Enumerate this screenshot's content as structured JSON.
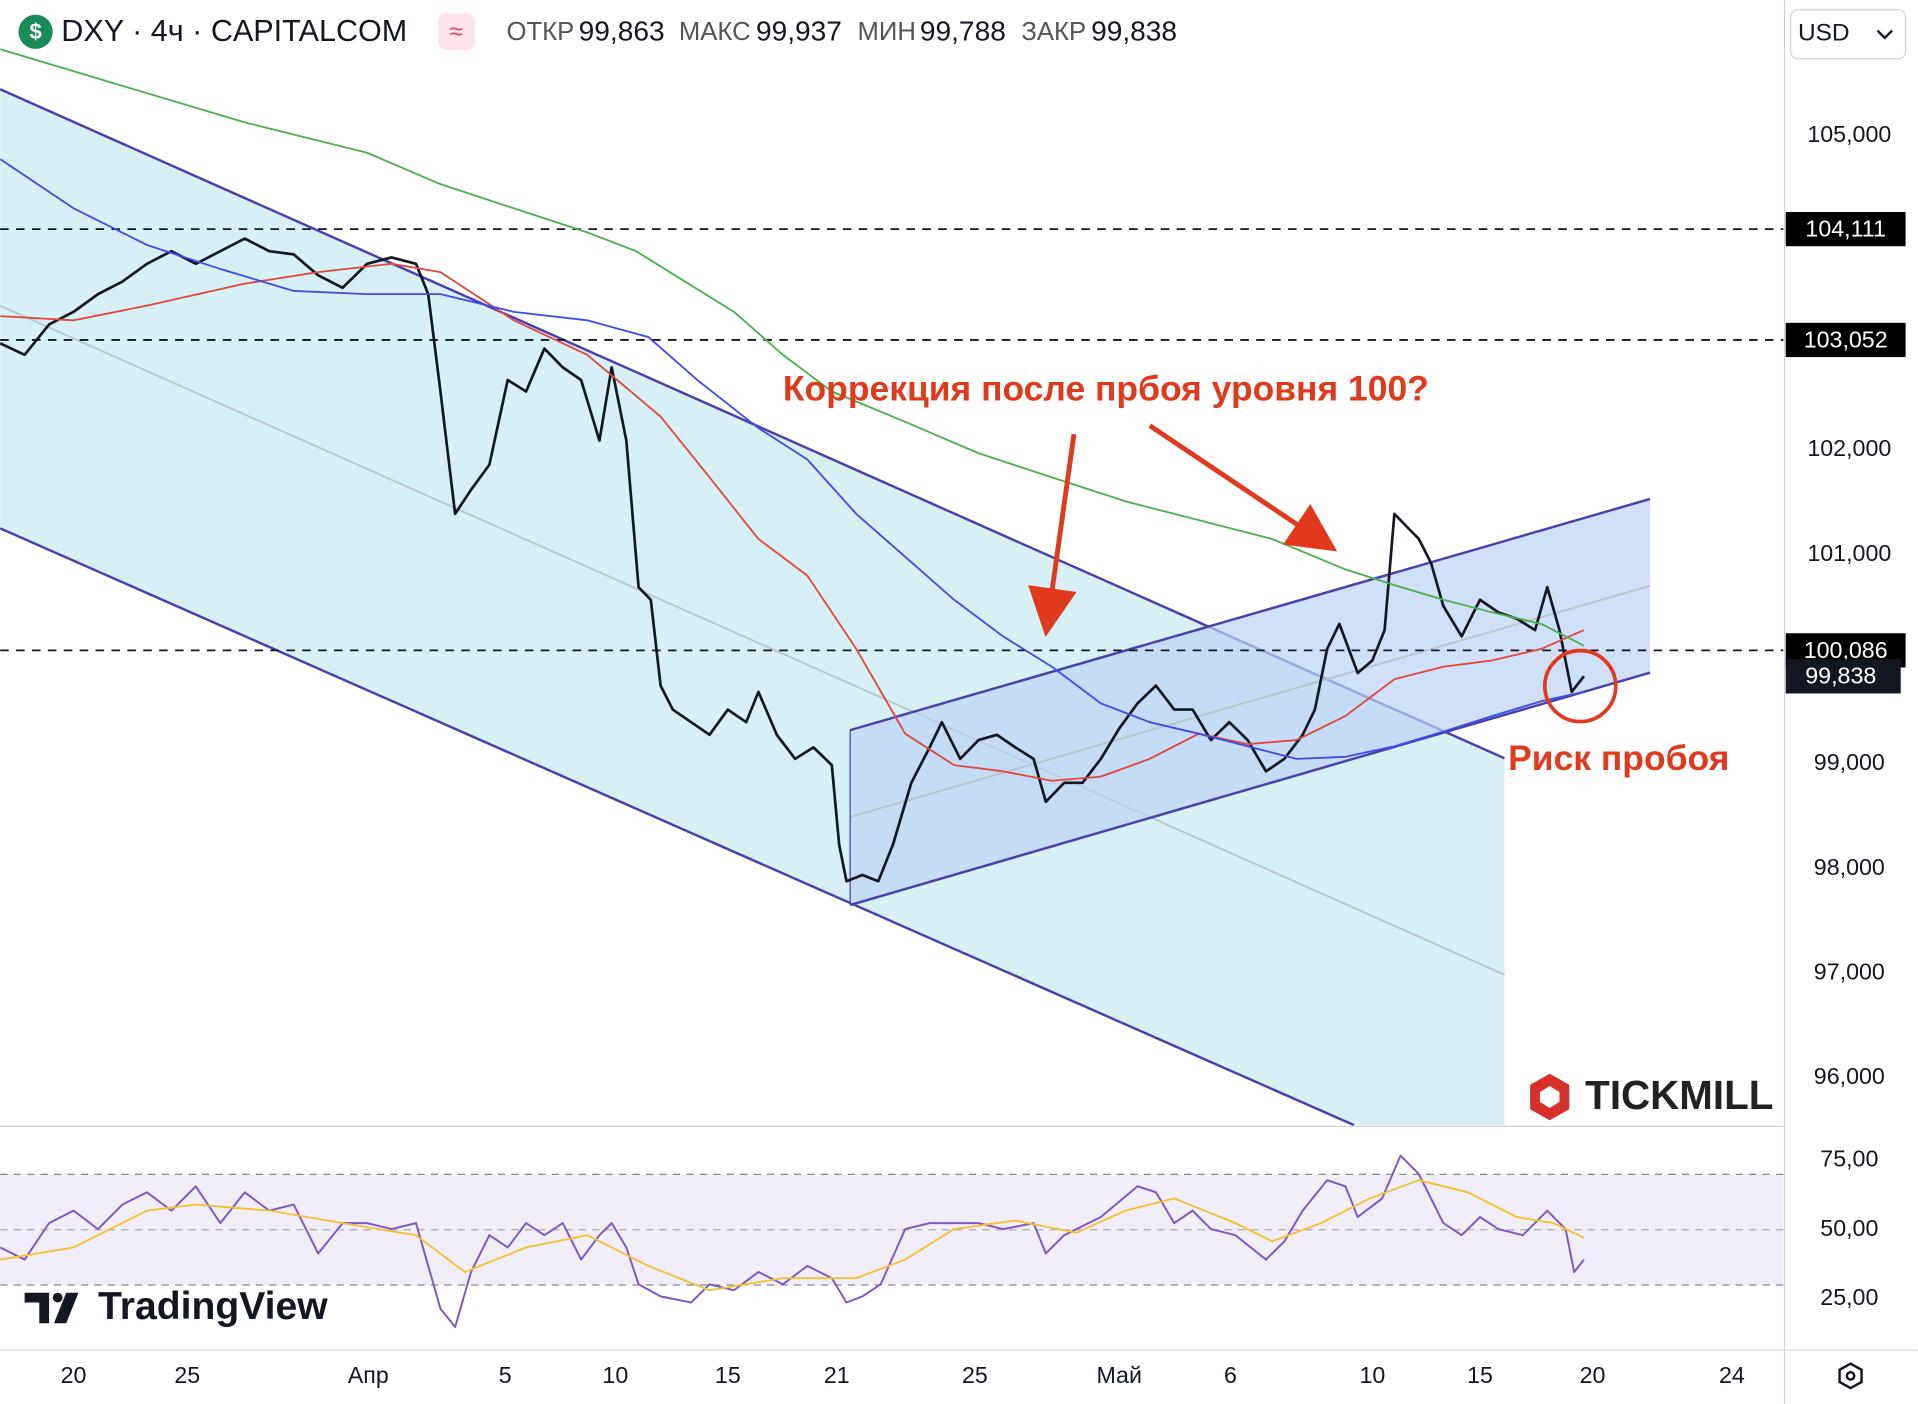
{
  "header": {
    "symbol": "DXY · 4ч · CAPITALCOM",
    "currency": "USD",
    "ohlc": [
      {
        "label": "ОТКР",
        "value": "99,863"
      },
      {
        "label": "МАКС",
        "value": "99,937"
      },
      {
        "label": "МИН",
        "value": "99,788"
      },
      {
        "label": "ЗАКР",
        "value": "99,838"
      }
    ]
  },
  "logos": [
    "TICKMILL",
    "TradingView"
  ],
  "chart_data": [
    {
      "type": "line",
      "annotations": [
        "Коррекция после прбоя уровня 100?",
        "Риск пробоя"
      ],
      "xlim": [
        0,
        291.6
      ],
      "xticks": [
        {
          "value": 12,
          "label": "20"
        },
        {
          "value": 30.6,
          "label": "25"
        },
        {
          "value": 60.2,
          "label": "Апр"
        },
        {
          "value": 82.6,
          "label": "5"
        },
        {
          "value": 100.6,
          "label": "10"
        },
        {
          "value": 119,
          "label": "15"
        },
        {
          "value": 136.8,
          "label": "21"
        },
        {
          "value": 159.4,
          "label": "25"
        },
        {
          "value": 183,
          "label": "Май"
        },
        {
          "value": 201.2,
          "label": "6"
        },
        {
          "value": 224.4,
          "label": "10"
        },
        {
          "value": 242,
          "label": "15"
        },
        {
          "value": 260.4,
          "label": "20"
        },
        {
          "value": 283.2,
          "label": "24"
        }
      ],
      "ylim": [
        95.55,
        106.3
      ],
      "yticks": [
        {
          "value": 105,
          "label": "105,000"
        },
        {
          "value": 102,
          "label": "102,000"
        },
        {
          "value": 101,
          "label": "101,000"
        },
        {
          "value": 99,
          "label": "99,000"
        },
        {
          "value": 98,
          "label": "98,000"
        },
        {
          "value": 97,
          "label": "97,000"
        },
        {
          "value": 96,
          "label": "96,000"
        }
      ],
      "levels": [
        {
          "value": 104.111,
          "label": "104,111"
        },
        {
          "value": 103.052,
          "label": "103,052"
        },
        {
          "value": 100.086,
          "label": "100,086"
        }
      ],
      "last_price": {
        "value": 99.838,
        "label": "99,838"
      },
      "series": [
        {
          "color": "#131722",
          "width": 2.2,
          "x": [
            0,
            4,
            8,
            12,
            16,
            20,
            24,
            28,
            32,
            36,
            40,
            44,
            48,
            52,
            56,
            60,
            64,
            68,
            70,
            72,
            74.4,
            77,
            80,
            83,
            86,
            89,
            92,
            95,
            98,
            100,
            102.4,
            104.4,
            106.4,
            108,
            110,
            113,
            116,
            119,
            122,
            124,
            127,
            130,
            133,
            136,
            137.2,
            138.4,
            141,
            143.6,
            146,
            149,
            152,
            154,
            157,
            160,
            163,
            166,
            169,
            171,
            174,
            177,
            180,
            183,
            186,
            189,
            192,
            195,
            198,
            201,
            204,
            207,
            210,
            213,
            215,
            217,
            219,
            222,
            224.4,
            226.4,
            228,
            230,
            232,
            234,
            236,
            239,
            242,
            245,
            248,
            251,
            253,
            255,
            257,
            259
          ],
          "values": [
            103.02,
            102.91,
            103.2,
            103.32,
            103.49,
            103.61,
            103.78,
            103.9,
            103.78,
            103.9,
            104.02,
            103.9,
            103.87,
            103.67,
            103.55,
            103.78,
            103.84,
            103.78,
            103.49,
            102.56,
            101.39,
            101.62,
            101.86,
            102.67,
            102.56,
            102.97,
            102.79,
            102.67,
            102.09,
            102.79,
            102.09,
            100.69,
            100.57,
            99.75,
            99.52,
            99.4,
            99.28,
            99.52,
            99.4,
            99.69,
            99.28,
            99.05,
            99.16,
            98.99,
            98.23,
            97.88,
            97.94,
            97.88,
            98.23,
            98.82,
            99.16,
            99.4,
            99.05,
            99.23,
            99.28,
            99.16,
            99.05,
            98.64,
            98.82,
            98.82,
            99.05,
            99.34,
            99.58,
            99.75,
            99.52,
            99.52,
            99.23,
            99.4,
            99.23,
            98.93,
            99.05,
            99.28,
            99.52,
            100.1,
            100.34,
            99.87,
            99.99,
            100.28,
            101.39,
            101.27,
            101.15,
            100.92,
            100.51,
            100.22,
            100.57,
            100.45,
            100.39,
            100.28,
            100.69,
            100.28,
            99.69,
            99.84
          ]
        },
        {
          "color": "#e0483e",
          "width": 1.5,
          "x": [
            0,
            12,
            24,
            40,
            52,
            64,
            72,
            84,
            96,
            108,
            116,
            124,
            132,
            140,
            148,
            156,
            164,
            172,
            180,
            188,
            196,
            204,
            212,
            220,
            228,
            236,
            244,
            252,
            259
          ],
          "values": [
            103.28,
            103.24,
            103.38,
            103.59,
            103.7,
            103.78,
            103.7,
            103.24,
            102.91,
            102.32,
            101.74,
            101.15,
            100.8,
            100.1,
            99.29,
            98.99,
            98.93,
            98.84,
            98.88,
            99.05,
            99.29,
            99.19,
            99.23,
            99.46,
            99.81,
            99.93,
            99.99,
            100.1,
            100.28
          ]
        },
        {
          "color": "#3f4de8",
          "width": 1.5,
          "x": [
            0,
            12,
            24,
            36,
            48,
            60,
            72,
            84,
            96,
            106,
            114,
            124,
            132,
            140,
            148,
            156,
            164,
            172,
            180,
            188,
            196,
            204,
            212,
            220,
            228,
            236,
            244,
            252,
            259
          ],
          "values": [
            104.78,
            104.31,
            103.96,
            103.73,
            103.52,
            103.49,
            103.49,
            103.32,
            103.24,
            103.08,
            102.67,
            102.21,
            101.91,
            101.39,
            100.98,
            100.57,
            100.22,
            99.93,
            99.58,
            99.4,
            99.29,
            99.17,
            99.05,
            99.07,
            99.17,
            99.31,
            99.46,
            99.6,
            99.69
          ]
        },
        {
          "color": "#4caf50",
          "width": 1.5,
          "x": [
            0,
            20,
            40,
            60,
            72,
            84,
            96,
            104,
            112,
            120,
            128,
            136,
            148,
            160,
            172,
            184,
            196,
            208,
            220,
            228,
            236,
            244,
            252,
            259
          ],
          "values": [
            105.83,
            105.48,
            105.13,
            104.84,
            104.54,
            104.31,
            104.08,
            103.9,
            103.61,
            103.32,
            102.91,
            102.56,
            102.27,
            101.97,
            101.74,
            101.51,
            101.33,
            101.15,
            100.86,
            100.71,
            100.57,
            100.45,
            100.34,
            100.13
          ]
        }
      ]
    },
    {
      "type": "line",
      "ylim": [
        6.9,
        86.9
      ],
      "yticks": [
        {
          "value": 75,
          "label": "75,00"
        },
        {
          "value": 50,
          "label": "50,00"
        },
        {
          "value": 25,
          "label": "25,00"
        }
      ],
      "band": [
        30,
        70
      ],
      "midline": 50,
      "series": [
        {
          "color": "#7e57c2",
          "width": 1.6,
          "x": [
            0,
            4,
            8,
            12,
            16,
            20,
            24,
            28,
            32,
            36,
            40,
            44,
            48,
            52,
            56,
            60,
            64,
            68,
            72,
            74.4,
            77,
            80,
            83,
            86,
            89,
            92,
            95,
            98,
            100,
            102.4,
            104.4,
            108,
            113,
            116,
            120,
            124,
            128,
            132,
            136,
            138.4,
            141,
            144,
            148,
            152,
            156,
            160,
            164,
            169,
            171,
            174,
            180,
            186,
            189,
            192,
            195,
            198,
            202,
            207,
            210,
            213,
            217,
            220,
            222,
            226,
            229,
            232,
            236,
            239,
            242,
            245,
            249,
            253,
            256,
            257.4,
            259
          ],
          "values": [
            43.6,
            39.2,
            52.4,
            56.9,
            50.2,
            59.1,
            63.5,
            56.9,
            65.7,
            52.4,
            63.5,
            56.9,
            59.1,
            41.4,
            52.4,
            52.4,
            50.2,
            52.4,
            21.5,
            14.8,
            34.7,
            48.0,
            43.6,
            52.4,
            48.0,
            52.4,
            39.2,
            48.0,
            52.4,
            43.6,
            30.3,
            25.9,
            23.7,
            30.3,
            28.1,
            34.7,
            30.3,
            36.9,
            32.5,
            23.7,
            25.9,
            30.3,
            50.2,
            52.4,
            52.4,
            52.4,
            50.2,
            52.4,
            41.4,
            48.0,
            54.6,
            65.7,
            63.5,
            52.4,
            56.9,
            50.2,
            48.0,
            39.2,
            45.8,
            56.9,
            67.9,
            65.7,
            54.6,
            61.3,
            76.8,
            70.1,
            52.4,
            48.0,
            54.6,
            50.2,
            48.0,
            56.9,
            50.2,
            34.7,
            39.2
          ]
        },
        {
          "color": "#f2c12e",
          "width": 1.5,
          "x": [
            0,
            12,
            24,
            32,
            44,
            56,
            68,
            76,
            86,
            96,
            106,
            116,
            128,
            140,
            148,
            156,
            166,
            176,
            184,
            192,
            202,
            208,
            216,
            224,
            232,
            240,
            248,
            254,
            259
          ],
          "values": [
            39.2,
            43.6,
            56.9,
            59.1,
            56.9,
            52.4,
            48.0,
            34.7,
            43.6,
            48.0,
            36.9,
            28.1,
            32.5,
            32.5,
            39.2,
            50.2,
            53.3,
            48.9,
            56.9,
            61.3,
            52.4,
            45.8,
            52.4,
            61.3,
            67.9,
            63.5,
            54.6,
            52.4,
            47.1
          ]
        }
      ]
    }
  ]
}
